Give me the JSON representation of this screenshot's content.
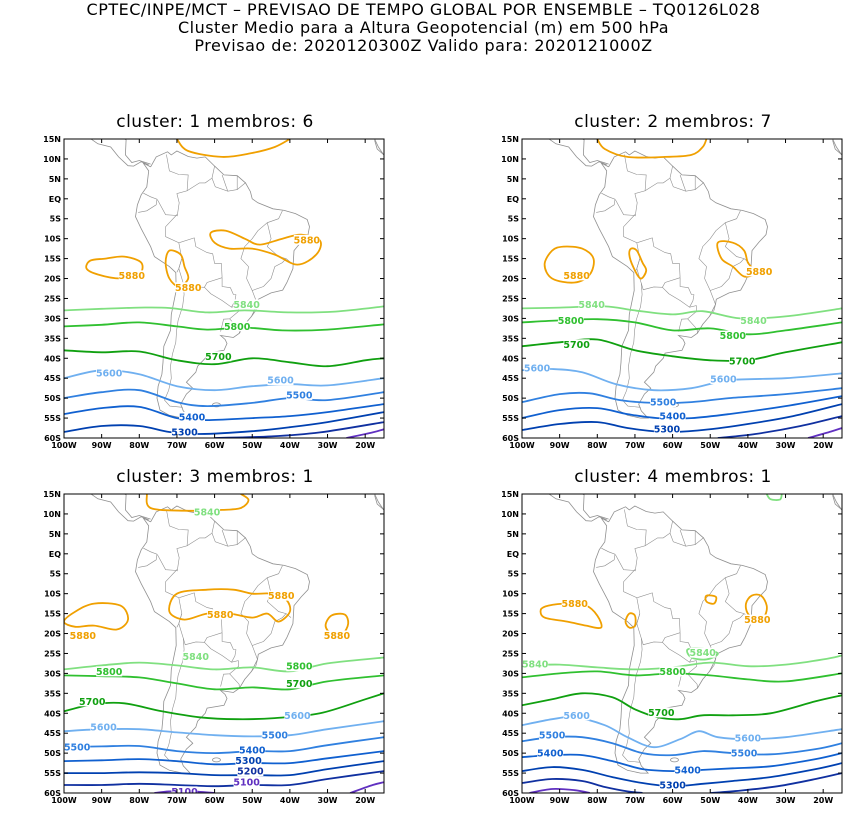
{
  "header": {
    "line1": "CPTEC/INPE/MCT – PREVISAO DE TEMPO GLOBAL POR ENSEMBLE – TQ0126L028",
    "line2": "Cluster Medio para a Altura Geopotencial (m) em 500 hPa",
    "line3": "Previsao de: 2020120300Z    Valido para: 2020121000Z"
  },
  "axes": {
    "lat_labels": [
      "15N",
      "10N",
      "5N",
      "EQ",
      "5S",
      "10S",
      "15S",
      "20S",
      "25S",
      "30S",
      "35S",
      "40S",
      "45S",
      "50S",
      "55S",
      "60S"
    ],
    "lon_labels": [
      "100W",
      "90W",
      "80W",
      "70W",
      "60W",
      "50W",
      "40W",
      "30W",
      "20W"
    ]
  },
  "colors": {
    "c5880": "#f0a000",
    "c5840": "#80e080",
    "c5800": "#30c030",
    "c5700": "#10a010",
    "c5600": "#70b0f0",
    "c5500": "#3080e0",
    "c5400": "#1060d0",
    "c5300": "#0040b0",
    "c5200": "#1030a0",
    "c5100": "#6030c0",
    "coast": "#909090"
  },
  "panels": [
    {
      "title": "cluster: 1   membros: 6",
      "contour_labels": [
        "5880",
        "5880",
        "5880",
        "5840",
        "5800",
        "5700",
        "5600",
        "5600",
        "5500",
        "5400",
        "5300"
      ]
    },
    {
      "title": "cluster: 2   membros: 7",
      "contour_labels": [
        "5880",
        "5880",
        "5840",
        "5840",
        "5800",
        "5800",
        "5700",
        "5700",
        "5600",
        "5600",
        "5500",
        "5400",
        "5300"
      ]
    },
    {
      "title": "cluster: 3   membros: 1",
      "contour_labels": [
        "5880",
        "5880",
        "5880",
        "5880",
        "5840",
        "5840",
        "5800",
        "5800",
        "5700",
        "5700",
        "5600",
        "5600",
        "5500",
        "5500",
        "5400",
        "5300",
        "5200",
        "5100"
      ]
    },
    {
      "title": "cluster: 4   membros: 1",
      "contour_labels": [
        "5880",
        "5880",
        "5840",
        "5840",
        "5800",
        "5700",
        "5600",
        "5600",
        "5500",
        "5500",
        "5400",
        "5400",
        "5300"
      ]
    }
  ]
}
